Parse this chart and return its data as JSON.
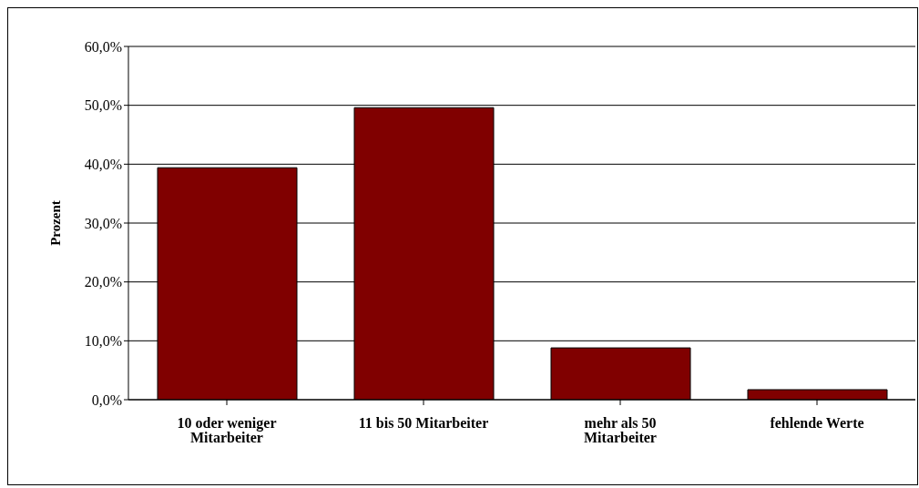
{
  "chart_data": {
    "type": "bar",
    "ylabel": "Prozent",
    "categories": [
      "10 oder weniger Mitarbeiter",
      "11 bis 50 Mitarbeiter",
      "mehr als 50 Mitarbeiter",
      "fehlende Werte"
    ],
    "values": [
      39.4,
      49.6,
      8.8,
      1.7
    ],
    "color": "#800000",
    "ylim": [
      0,
      60
    ],
    "yticks": [
      {
        "value": 0,
        "label": "0,0%"
      },
      {
        "value": 10,
        "label": "10,0%"
      },
      {
        "value": 20,
        "label": "20,0%"
      },
      {
        "value": 30,
        "label": "30,0%"
      },
      {
        "value": 40,
        "label": "40,0%"
      },
      {
        "value": 50,
        "label": "50,0%"
      },
      {
        "value": 60,
        "label": "60,0%"
      }
    ],
    "grid": "y",
    "legend": false
  }
}
